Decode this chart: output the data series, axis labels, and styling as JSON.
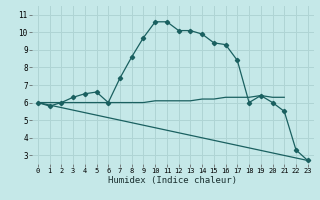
{
  "xlabel": "Humidex (Indice chaleur)",
  "bg_color": "#c5e8e8",
  "grid_color": "#afd4d4",
  "line_color": "#1a6060",
  "xlim": [
    -0.5,
    23.5
  ],
  "ylim": [
    2.5,
    11.5
  ],
  "xticks": [
    0,
    1,
    2,
    3,
    4,
    5,
    6,
    7,
    8,
    9,
    10,
    11,
    12,
    13,
    14,
    15,
    16,
    17,
    18,
    19,
    20,
    21,
    22,
    23
  ],
  "yticks": [
    3,
    4,
    5,
    6,
    7,
    8,
    9,
    10,
    11
  ],
  "curve1_x": [
    0,
    1,
    2,
    3,
    4,
    5,
    6,
    7,
    8,
    9,
    10,
    11,
    12,
    13,
    14,
    15,
    16,
    17,
    18,
    19,
    20,
    21,
    22,
    23
  ],
  "curve1_y": [
    6.0,
    5.8,
    6.0,
    6.3,
    6.5,
    6.6,
    6.0,
    7.4,
    8.6,
    9.7,
    10.6,
    10.6,
    10.1,
    10.1,
    9.9,
    9.4,
    9.3,
    8.4,
    6.0,
    6.4,
    6.0,
    5.5,
    3.3,
    2.7
  ],
  "curve2_x": [
    0,
    1,
    2,
    3,
    4,
    5,
    6,
    7,
    8,
    9,
    10,
    11,
    12,
    13,
    14,
    15,
    16,
    17,
    18,
    19,
    20,
    21
  ],
  "curve2_y": [
    6.0,
    6.0,
    6.0,
    6.0,
    6.0,
    6.0,
    6.0,
    6.0,
    6.0,
    6.0,
    6.1,
    6.1,
    6.1,
    6.1,
    6.2,
    6.2,
    6.3,
    6.3,
    6.3,
    6.4,
    6.3,
    6.3
  ],
  "curve3_x": [
    0,
    23
  ],
  "curve3_y": [
    6.0,
    2.7
  ],
  "xlabel_fontsize": 6.5,
  "tick_fontsize": 5.0
}
